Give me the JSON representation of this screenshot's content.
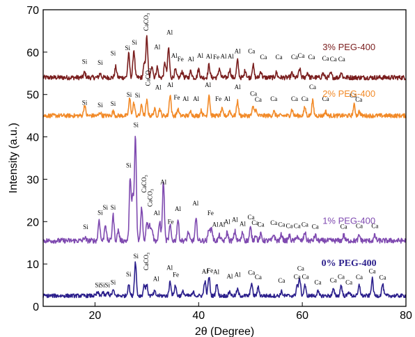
{
  "chart_data": {
    "type": "line",
    "title": "",
    "xlabel": "2θ (Degree)",
    "ylabel": "Intensity (a.u.)",
    "xlim": [
      10,
      80
    ],
    "ylim": [
      0,
      70
    ],
    "x_ticks": [
      20,
      40,
      60,
      80
    ],
    "y_ticks": [
      0,
      10,
      20,
      30,
      40,
      50,
      60,
      70
    ],
    "grid": false,
    "legend": "inline labels at right",
    "series": [
      {
        "name": "3% PEG-400",
        "color": "#7a1e1e",
        "label_bold": false,
        "label_pos": [
          69,
          60.5
        ],
        "baseline": 54,
        "noise": 0.55,
        "peaks": [
          [
            18,
            1.2
          ],
          [
            21,
            1.0
          ],
          [
            24,
            2.5
          ],
          [
            26.5,
            5.5
          ],
          [
            27.5,
            6.5
          ],
          [
            29.5,
            3.0
          ],
          [
            30,
            9.5
          ],
          [
            31,
            3.0
          ],
          [
            32,
            2.5
          ],
          [
            33.5,
            3.5
          ],
          [
            34.2,
            7.0
          ],
          [
            35.5,
            1.8
          ],
          [
            36.8,
            1.5
          ],
          [
            38.5,
            1.6
          ],
          [
            40,
            2.0
          ],
          [
            42,
            3.0
          ],
          [
            44,
            2.2
          ],
          [
            46,
            2.0
          ],
          [
            47.5,
            4.0
          ],
          [
            49,
            1.8
          ],
          [
            50.5,
            3.0
          ],
          [
            52,
            1.5
          ],
          [
            55,
            1.2
          ],
          [
            58,
            1.0
          ],
          [
            59.5,
            2.0
          ],
          [
            61,
            1.2
          ],
          [
            64,
            1.0
          ],
          [
            65.5,
            1.0
          ],
          [
            67.5,
            1.2
          ]
        ]
      },
      {
        "name": "2% PEG-400",
        "color": "#f28a28",
        "label_bold": false,
        "label_pos": [
          69,
          49.5
        ],
        "baseline": 45,
        "noise": 0.5,
        "peaks": [
          [
            18,
            2.5
          ],
          [
            21,
            0.8
          ],
          [
            23.5,
            1.0
          ],
          [
            26.7,
            4.0
          ],
          [
            27.5,
            3.0
          ],
          [
            29,
            2.5
          ],
          [
            30,
            3.5
          ],
          [
            31.5,
            1.5
          ],
          [
            32.5,
            1.6
          ],
          [
            34.5,
            5.0
          ],
          [
            36,
            1.5
          ],
          [
            38.5,
            1.0
          ],
          [
            40.5,
            1.2
          ],
          [
            42,
            5.0
          ],
          [
            44.5,
            1.5
          ],
          [
            46,
            1.2
          ],
          [
            47.5,
            3.5
          ],
          [
            50.5,
            2.0
          ],
          [
            51,
            1.4
          ],
          [
            54.5,
            1.0
          ],
          [
            58,
            1.5
          ],
          [
            60.5,
            2.0
          ],
          [
            62,
            3.5
          ],
          [
            64.5,
            1.0
          ],
          [
            70,
            2.5
          ],
          [
            71,
            1.0
          ]
        ]
      },
      {
        "name": "1% PEG-400",
        "color": "#7f4ab0",
        "label_bold": false,
        "label_pos": [
          69,
          19.5
        ],
        "baseline": 15.5,
        "noise": 0.6,
        "peaks": [
          [
            18,
            0.8
          ],
          [
            20.8,
            5.0
          ],
          [
            22,
            4.0
          ],
          [
            23.5,
            6.0
          ],
          [
            24.5,
            2.5
          ],
          [
            26.8,
            15.0
          ],
          [
            27.3,
            10.0
          ],
          [
            27.8,
            24.5
          ],
          [
            29,
            8.0
          ],
          [
            30,
            4.5
          ],
          [
            30.5,
            4.0
          ],
          [
            31,
            3.0
          ],
          [
            32.5,
            4.5
          ],
          [
            33.2,
            14.0
          ],
          [
            34.5,
            3.5
          ],
          [
            36,
            5.0
          ],
          [
            38,
            2.0
          ],
          [
            39.5,
            5.0
          ],
          [
            42,
            3.0
          ],
          [
            42.5,
            3.0
          ],
          [
            44,
            1.2
          ],
          [
            45.5,
            2.0
          ],
          [
            47,
            2.2
          ],
          [
            48.5,
            2.0
          ],
          [
            50,
            3.0
          ],
          [
            51,
            1.5
          ],
          [
            52,
            1.5
          ],
          [
            54.5,
            1.5
          ],
          [
            56,
            1.5
          ],
          [
            57.5,
            1.2
          ],
          [
            59,
            1.2
          ],
          [
            60.5,
            2.0
          ],
          [
            62.5,
            1.3
          ],
          [
            68,
            1.3
          ],
          [
            71,
            1.2
          ],
          [
            74,
            1.2
          ]
        ]
      },
      {
        "name": "0% PEG-400",
        "color": "#2b1f8c",
        "label_bold": true,
        "label_pos": [
          69,
          9.5
        ],
        "baseline": 2.5,
        "noise": 0.45,
        "peaks": [
          [
            20.5,
            0.8
          ],
          [
            21.5,
            0.8
          ],
          [
            22.5,
            0.8
          ],
          [
            23.5,
            1.3
          ],
          [
            26.5,
            2.8
          ],
          [
            27.8,
            8.0
          ],
          [
            29.5,
            2.5
          ],
          [
            30,
            2.5
          ],
          [
            31.5,
            1.0
          ],
          [
            34.5,
            3.5
          ],
          [
            35.5,
            2.5
          ],
          [
            37,
            1.0
          ],
          [
            39,
            0.8
          ],
          [
            41.2,
            3.5
          ],
          [
            42,
            4.5
          ],
          [
            43.5,
            3.0
          ],
          [
            46,
            1.0
          ],
          [
            47.5,
            1.5
          ],
          [
            50.2,
            3.0
          ],
          [
            51.5,
            2.0
          ],
          [
            56,
            1.0
          ],
          [
            59,
            2.5
          ],
          [
            59.5,
            4.0
          ],
          [
            60.5,
            2.5
          ],
          [
            63,
            1.0
          ],
          [
            66,
            1.5
          ],
          [
            67.5,
            2.5
          ],
          [
            69,
            1.0
          ],
          [
            71,
            2.5
          ],
          [
            73.5,
            4.0
          ],
          [
            75.5,
            2.8
          ]
        ]
      }
    ],
    "annotations": [
      {
        "text": "Si",
        "x": 18,
        "y": 57.3
      },
      {
        "text": "Si",
        "x": 21,
        "y": 57
      },
      {
        "text": "Si",
        "x": 23.5,
        "y": 59.2
      },
      {
        "text": "Si",
        "x": 26.3,
        "y": 60.5
      },
      {
        "text": "Si",
        "x": 27.6,
        "y": 61.8
      },
      {
        "text": "CaCO3",
        "x": 29.9,
        "y": 65,
        "rotate": true
      },
      {
        "text": "Al",
        "x": 32,
        "y": 60.7
      },
      {
        "text": "Al",
        "x": 34.4,
        "y": 64.2
      },
      {
        "text": "Al",
        "x": 35.3,
        "y": 58.7
      },
      {
        "text": "Fe",
        "x": 36.5,
        "y": 57.8
      },
      {
        "text": "Al",
        "x": 38.5,
        "y": 57.8
      },
      {
        "text": "Al",
        "x": 40.3,
        "y": 58.7
      },
      {
        "text": "Al",
        "x": 42,
        "y": 58.5
      },
      {
        "text": "Fe",
        "x": 43.4,
        "y": 58.3
      },
      {
        "text": "Al",
        "x": 44.8,
        "y": 58.5
      },
      {
        "text": "Al",
        "x": 46.2,
        "y": 58.5
      },
      {
        "text": "Al",
        "x": 47.5,
        "y": 59.7
      },
      {
        "text": "Ca",
        "x": 50.2,
        "y": 59.7
      },
      {
        "text": "Ca",
        "x": 52.5,
        "y": 58.3
      },
      {
        "text": "Ca",
        "x": 55.5,
        "y": 58.3
      },
      {
        "text": "Ca",
        "x": 58.5,
        "y": 58.3
      },
      {
        "text": "Ca",
        "x": 59.8,
        "y": 58.7
      },
      {
        "text": "Ca",
        "x": 61.8,
        "y": 58.3
      },
      {
        "text": "Ca",
        "x": 64.5,
        "y": 58
      },
      {
        "text": "Ca",
        "x": 66,
        "y": 57.8
      },
      {
        "text": "Ca",
        "x": 67.6,
        "y": 57.8
      },
      {
        "text": "Si",
        "x": 18,
        "y": 47.6
      },
      {
        "text": "Si",
        "x": 21,
        "y": 47
      },
      {
        "text": "Si",
        "x": 23.5,
        "y": 47.3
      },
      {
        "text": "Si",
        "x": 26.6,
        "y": 49.5
      },
      {
        "text": "Si",
        "x": 28.2,
        "y": 49.3
      },
      {
        "text": "CaCO3",
        "x": 30.2,
        "y": 52,
        "rotate": true
      },
      {
        "text": "Al",
        "x": 32.2,
        "y": 51.2
      },
      {
        "text": "Al",
        "x": 34.5,
        "y": 51.8
      },
      {
        "text": "Fe",
        "x": 35.8,
        "y": 48.8
      },
      {
        "text": "Al",
        "x": 37.5,
        "y": 48.5
      },
      {
        "text": "Al",
        "x": 39.5,
        "y": 48.5
      },
      {
        "text": "Al",
        "x": 41.8,
        "y": 51.8
      },
      {
        "text": "Fe",
        "x": 43.8,
        "y": 48.5
      },
      {
        "text": "Al",
        "x": 45.5,
        "y": 48.5
      },
      {
        "text": "Al",
        "x": 47.5,
        "y": 51.3
      },
      {
        "text": "Ca",
        "x": 50.6,
        "y": 49.7
      },
      {
        "text": "Ca",
        "x": 51.5,
        "y": 48.3
      },
      {
        "text": "Ca",
        "x": 54.5,
        "y": 48.5
      },
      {
        "text": "Ca",
        "x": 58.5,
        "y": 48.5
      },
      {
        "text": "Ca",
        "x": 60.5,
        "y": 48.5
      },
      {
        "text": "Ca",
        "x": 62,
        "y": 51.3
      },
      {
        "text": "Ca",
        "x": 64.5,
        "y": 48.5
      },
      {
        "text": "Ca",
        "x": 69.8,
        "y": 49.3
      },
      {
        "text": "Ca",
        "x": 70.9,
        "y": 48.3
      },
      {
        "text": "Si",
        "x": 18.2,
        "y": 18.2
      },
      {
        "text": "Si",
        "x": 21,
        "y": 21.6
      },
      {
        "text": "Si",
        "x": 22,
        "y": 22.8
      },
      {
        "text": "Si",
        "x": 23.5,
        "y": 22.8
      },
      {
        "text": "Si",
        "x": 26.5,
        "y": 32.8
      },
      {
        "text": "Si",
        "x": 27.9,
        "y": 42.3
      },
      {
        "text": "CaCO3",
        "x": 29.5,
        "y": 26.8,
        "rotate": true
      },
      {
        "text": "CaCO3",
        "x": 30.6,
        "y": 23.5,
        "rotate": true
      },
      {
        "text": "Al",
        "x": 31.9,
        "y": 21.5
      },
      {
        "text": "Al",
        "x": 33.2,
        "y": 28.8
      },
      {
        "text": "Fe",
        "x": 34.6,
        "y": 19.5
      },
      {
        "text": "Al",
        "x": 36,
        "y": 22.5
      },
      {
        "text": "Al",
        "x": 39.4,
        "y": 23.8
      },
      {
        "text": "Fe",
        "x": 42.3,
        "y": 21.5
      },
      {
        "text": "Al",
        "x": 43.2,
        "y": 18.8
      },
      {
        "text": "Al",
        "x": 44.5,
        "y": 18.8
      },
      {
        "text": "Al",
        "x": 45.5,
        "y": 19.5
      },
      {
        "text": "Al",
        "x": 47,
        "y": 20
      },
      {
        "text": "Al",
        "x": 48.5,
        "y": 19
      },
      {
        "text": "Ca",
        "x": 50.1,
        "y": 20.5
      },
      {
        "text": "Ca",
        "x": 50.9,
        "y": 19.2
      },
      {
        "text": "Ca",
        "x": 52,
        "y": 18.8
      },
      {
        "text": "Ca",
        "x": 54.5,
        "y": 19.2
      },
      {
        "text": "Ca",
        "x": 56,
        "y": 18.8
      },
      {
        "text": "Ca",
        "x": 57.5,
        "y": 18.5
      },
      {
        "text": "Ca",
        "x": 59,
        "y": 18.5
      },
      {
        "text": "Ca",
        "x": 60.5,
        "y": 18.8
      },
      {
        "text": "Ca",
        "x": 62.5,
        "y": 18.3
      },
      {
        "text": "Ca",
        "x": 68,
        "y": 18.3
      },
      {
        "text": "Ca",
        "x": 71,
        "y": 18.5
      },
      {
        "text": "Ca",
        "x": 74,
        "y": 18.5
      },
      {
        "text": "Si",
        "x": 20.5,
        "y": 4.5
      },
      {
        "text": "Si",
        "x": 21.4,
        "y": 4.5
      },
      {
        "text": "Si",
        "x": 22.4,
        "y": 4.5
      },
      {
        "text": "Si",
        "x": 23.5,
        "y": 5.2
      },
      {
        "text": "Si",
        "x": 26.5,
        "y": 7.1
      },
      {
        "text": "Si",
        "x": 27.9,
        "y": 11.3
      },
      {
        "text": "CaCO3",
        "x": 29.9,
        "y": 8.5,
        "rotate": true
      },
      {
        "text": "Al",
        "x": 31.8,
        "y": 6
      },
      {
        "text": "Al",
        "x": 34.4,
        "y": 8.6
      },
      {
        "text": "Fe",
        "x": 35.6,
        "y": 7
      },
      {
        "text": "Al",
        "x": 41.2,
        "y": 7.7
      },
      {
        "text": "Fe",
        "x": 42.2,
        "y": 8
      },
      {
        "text": "Al",
        "x": 43.4,
        "y": 7.6
      },
      {
        "text": "Al",
        "x": 46,
        "y": 6.6
      },
      {
        "text": "Al",
        "x": 47.5,
        "y": 7
      },
      {
        "text": "Ca",
        "x": 50.2,
        "y": 7.5
      },
      {
        "text": "Ca",
        "x": 51.5,
        "y": 6.4
      },
      {
        "text": "Ca",
        "x": 56,
        "y": 5.6
      },
      {
        "text": "Ca",
        "x": 59,
        "y": 6.5
      },
      {
        "text": "Ca",
        "x": 59.7,
        "y": 8.5
      },
      {
        "text": "Ca",
        "x": 60.6,
        "y": 6.5
      },
      {
        "text": "Ca",
        "x": 63,
        "y": 5.2
      },
      {
        "text": "Ca",
        "x": 66,
        "y": 5.7
      },
      {
        "text": "Ca",
        "x": 67.5,
        "y": 6.5
      },
      {
        "text": "Ca",
        "x": 69,
        "y": 5.2
      },
      {
        "text": "Ca",
        "x": 71,
        "y": 6.4
      },
      {
        "text": "Ca",
        "x": 73.5,
        "y": 7.8
      },
      {
        "text": "Ca",
        "x": 75.5,
        "y": 6.3
      }
    ]
  }
}
